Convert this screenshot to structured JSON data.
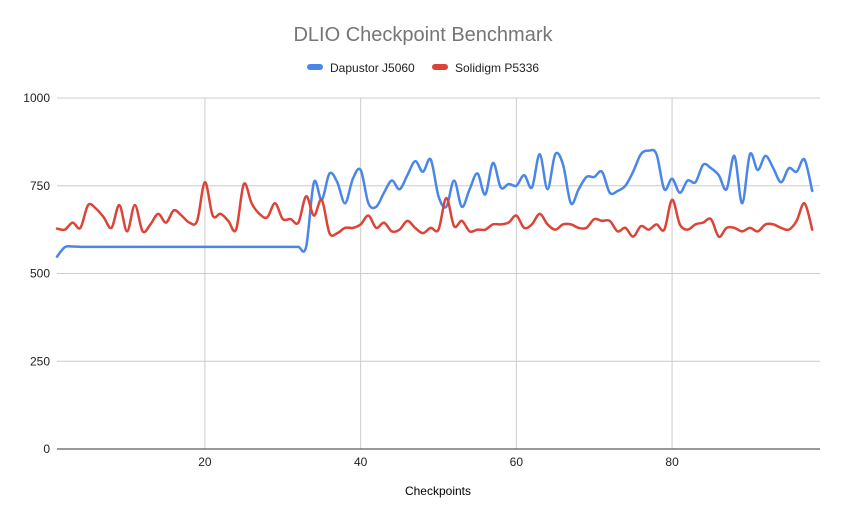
{
  "chart_data": {
    "type": "line",
    "title": "DLIO Checkpoint Benchmark",
    "xlabel": "Checkpoints",
    "ylabel": "",
    "xlim": [
      1,
      99
    ],
    "ylim": [
      0,
      1000
    ],
    "x_ticks": [
      20,
      40,
      60,
      80
    ],
    "y_ticks": [
      0,
      250,
      500,
      750,
      1000
    ],
    "grid": true,
    "legend_position": "top",
    "series": [
      {
        "name": "Dapustor J5060",
        "color": "#4a86e8",
        "values": [
          548,
          575,
          577,
          576,
          576,
          576,
          576,
          576,
          576,
          576,
          576,
          576,
          576,
          576,
          576,
          576,
          576,
          576,
          576,
          576,
          576,
          576,
          576,
          576,
          576,
          576,
          576,
          576,
          576,
          576,
          576,
          576,
          576,
          760,
          710,
          785,
          760,
          700,
          770,
          795,
          700,
          690,
          730,
          765,
          740,
          780,
          820,
          790,
          825,
          720,
          690,
          765,
          690,
          740,
          785,
          725,
          815,
          745,
          755,
          750,
          780,
          745,
          840,
          740,
          840,
          810,
          700,
          740,
          775,
          775,
          790,
          730,
          735,
          750,
          790,
          840,
          850,
          840,
          740,
          770,
          730,
          765,
          760,
          810,
          800,
          780,
          740,
          835,
          700,
          840,
          795,
          835,
          800,
          760,
          800,
          790,
          825,
          735
        ]
      },
      {
        "name": "Solidigm P5336",
        "color": "#db4437",
        "values": [
          628,
          625,
          645,
          630,
          695,
          685,
          660,
          630,
          695,
          620,
          695,
          620,
          640,
          670,
          645,
          680,
          665,
          645,
          650,
          760,
          665,
          670,
          650,
          625,
          755,
          700,
          670,
          660,
          700,
          655,
          655,
          645,
          720,
          665,
          710,
          615,
          615,
          630,
          630,
          640,
          665,
          630,
          645,
          620,
          625,
          650,
          630,
          615,
          630,
          625,
          715,
          635,
          650,
          620,
          625,
          625,
          640,
          640,
          645,
          665,
          630,
          640,
          670,
          640,
          625,
          640,
          640,
          630,
          630,
          655,
          650,
          650,
          620,
          630,
          605,
          635,
          625,
          640,
          625,
          710,
          640,
          625,
          640,
          645,
          655,
          605,
          630,
          630,
          620,
          630,
          620,
          640,
          640,
          630,
          625,
          650,
          700,
          625
        ]
      }
    ]
  }
}
